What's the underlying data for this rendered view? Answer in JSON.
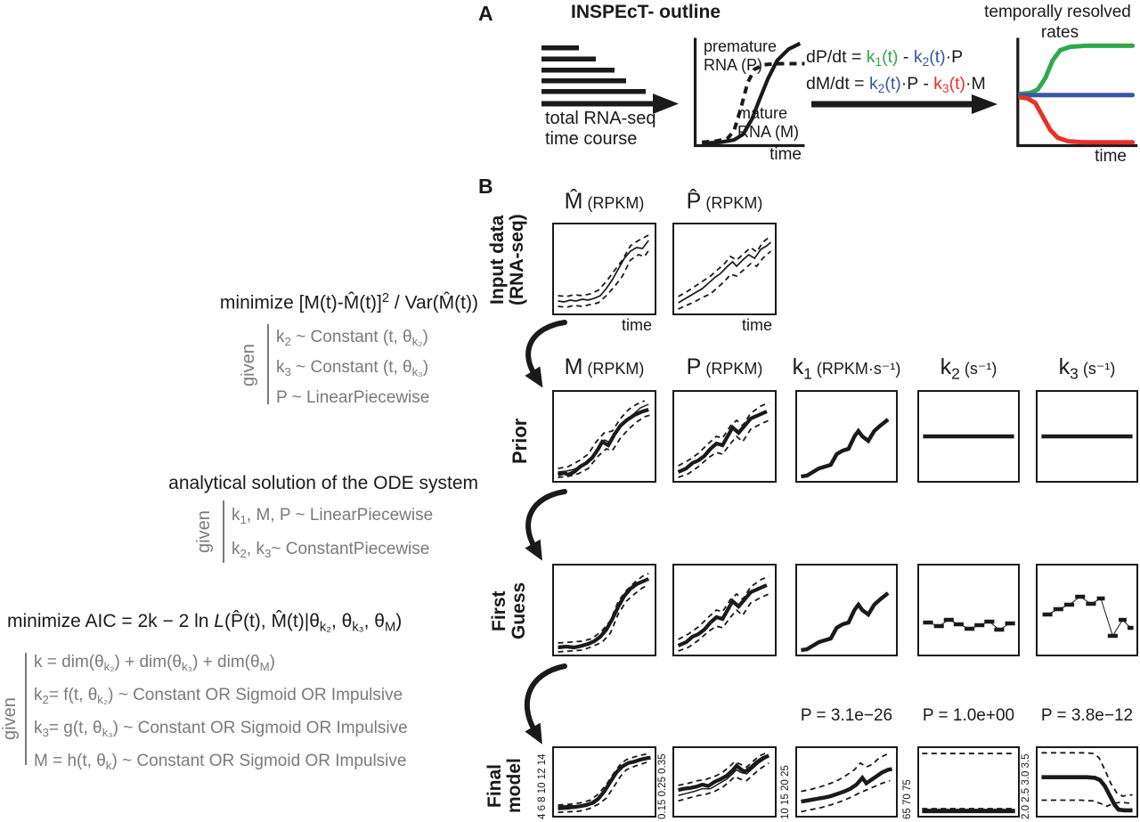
{
  "colors": {
    "green": "#2fa94c",
    "blue": "#3a55a5",
    "red": "#e93128",
    "gray": "#7b7b7e",
    "black": "#1a1a1a"
  },
  "panelA": {
    "label": "A",
    "title": "INSPEcT- outline",
    "reads_caption_line1": "total RNA-seq",
    "reads_caption_line2": "time course",
    "pm_plot": {
      "premature_line1": "premature",
      "premature_line2": "RNA (P)",
      "mature_line1": "mature",
      "mature_line2": "RNA (M)",
      "time": "time"
    },
    "ode_line1": [
      {
        "t": "dP/dt = "
      },
      {
        "t": "k",
        "c": "#2fa94c"
      },
      {
        "t": "1",
        "c": "#2fa94c",
        "sub": true
      },
      {
        "t": "(t)",
        "c": "#2fa94c"
      },
      {
        "t": " - "
      },
      {
        "t": "k",
        "c": "#3a55a5"
      },
      {
        "t": "2",
        "c": "#3a55a5",
        "sub": true
      },
      {
        "t": "(t)",
        "c": "#3a55a5"
      },
      {
        "t": "·P"
      }
    ],
    "ode_line2": [
      {
        "t": "dM/dt = "
      },
      {
        "t": "k",
        "c": "#3a55a5"
      },
      {
        "t": "2",
        "c": "#3a55a5",
        "sub": true
      },
      {
        "t": "(t)",
        "c": "#3a55a5"
      },
      {
        "t": "·P - "
      },
      {
        "t": "k",
        "c": "#e93128"
      },
      {
        "t": "3",
        "c": "#e93128",
        "sub": true
      },
      {
        "t": "(t)",
        "c": "#e93128"
      },
      {
        "t": "·M"
      }
    ],
    "rates": {
      "title_line1": "temporally resolved",
      "title_line2": "rates",
      "time": "time"
    }
  },
  "panelB": {
    "label": "B",
    "input": {
      "label_line1": "Input data",
      "label_line2": "(RNA-seq)",
      "headers": [
        [
          {
            "t": "M̂"
          },
          {
            "t": " (RPKM)",
            "sm": true
          }
        ],
        [
          {
            "t": "P̂"
          },
          {
            "t": " (RPKM)",
            "sm": true
          }
        ]
      ],
      "time1": "time",
      "time2": "time"
    },
    "prior": {
      "label": "Prior",
      "headers": [
        [
          {
            "t": "M"
          },
          {
            "t": " (RPKM)",
            "sm": true
          }
        ],
        [
          {
            "t": "P"
          },
          {
            "t": " (RPKM)",
            "sm": true
          }
        ],
        [
          {
            "t": "k"
          },
          {
            "t": "1",
            "sub": true
          },
          {
            "t": " (RPKM·s⁻¹)",
            "sm": true
          }
        ],
        [
          {
            "t": "k"
          },
          {
            "t": "2",
            "sub": true
          },
          {
            "t": " (s⁻¹)",
            "sm": true
          }
        ],
        [
          {
            "t": "k"
          },
          {
            "t": "3",
            "sub": true
          },
          {
            "t": " (s⁻¹)",
            "sm": true
          }
        ]
      ]
    },
    "first_guess": {
      "label_line1": "First",
      "label_line2": "Guess"
    },
    "final": {
      "label_line1": "Final",
      "label_line2": "model",
      "pvalues": [
        "P = 3.1e−26",
        "P = 1.0e+00",
        "P = 3.8e−12"
      ],
      "yticks": [
        "4 6 8 10 12 14",
        "0.15 0.25 0.35",
        "10 15 20 25",
        "65 70 75",
        "2.0 2.5 3.0 3.5"
      ]
    }
  },
  "math": {
    "given_label": "given",
    "block1_title": [
      {
        "t": "minimize [M(t)-M̂(t)]"
      },
      {
        "t": "2",
        "sup": true
      },
      {
        "t": " / Var(M̂(t))"
      }
    ],
    "block1_lines": [
      [
        {
          "t": "k"
        },
        {
          "t": "2",
          "sub": true
        },
        {
          "t": " ~ Constant (t, θ"
        },
        {
          "t": "k₂",
          "sub": true
        },
        {
          "t": ")"
        }
      ],
      [
        {
          "t": "k"
        },
        {
          "t": "3",
          "sub": true
        },
        {
          "t": " ~ Constant (t, θ"
        },
        {
          "t": "k₃",
          "sub": true
        },
        {
          "t": ")"
        }
      ],
      [
        {
          "t": "P ~ LinearPiecewise"
        }
      ]
    ],
    "block2_title": [
      {
        "t": "analytical solution of the ODE system"
      }
    ],
    "block2_lines": [
      [
        {
          "t": "k"
        },
        {
          "t": "1",
          "sub": true
        },
        {
          "t": ", M, P ~ LinearPiecewise"
        }
      ],
      [
        {
          "t": "k"
        },
        {
          "t": "2",
          "sub": true
        },
        {
          "t": ", k"
        },
        {
          "t": "3",
          "sub": true
        },
        {
          "t": "~ ConstantPiecewise"
        }
      ]
    ],
    "block3_title": [
      {
        "t": "minimize AIC = 2k − 2 ln "
      },
      {
        "t": "L",
        "i": true
      },
      {
        "t": "(P̂(t), M̂(t)|θ"
      },
      {
        "t": "k₂",
        "sub": true
      },
      {
        "t": ", θ"
      },
      {
        "t": "k₃",
        "sub": true
      },
      {
        "t": ", θ"
      },
      {
        "t": "M",
        "sub": true
      },
      {
        "t": ")"
      }
    ],
    "block3_lines": [
      [
        {
          "t": "k = dim(θ"
        },
        {
          "t": "k₂",
          "sub": true
        },
        {
          "t": ") + dim(θ"
        },
        {
          "t": "k₃",
          "sub": true
        },
        {
          "t": ") + dim(θ"
        },
        {
          "t": "M",
          "sub": true
        },
        {
          "t": ")"
        }
      ],
      [
        {
          "t": "k"
        },
        {
          "t": "2",
          "sub": true
        },
        {
          "t": "= f(t, θ"
        },
        {
          "t": "k₂",
          "sub": true
        },
        {
          "t": ") ~ Constant OR Sigmoid OR Impulsive"
        }
      ],
      [
        {
          "t": "k"
        },
        {
          "t": "3",
          "sub": true
        },
        {
          "t": "= g(t, θ"
        },
        {
          "t": "k₃",
          "sub": true
        },
        {
          "t": ") ~ Constant OR Sigmoid OR Impulsive"
        }
      ],
      [
        {
          "t": "M = h(t, θ"
        },
        {
          "t": "k",
          "sub": true
        },
        {
          "t": ") ~ Constant OR Sigmoid OR Impulsive"
        }
      ]
    ]
  }
}
